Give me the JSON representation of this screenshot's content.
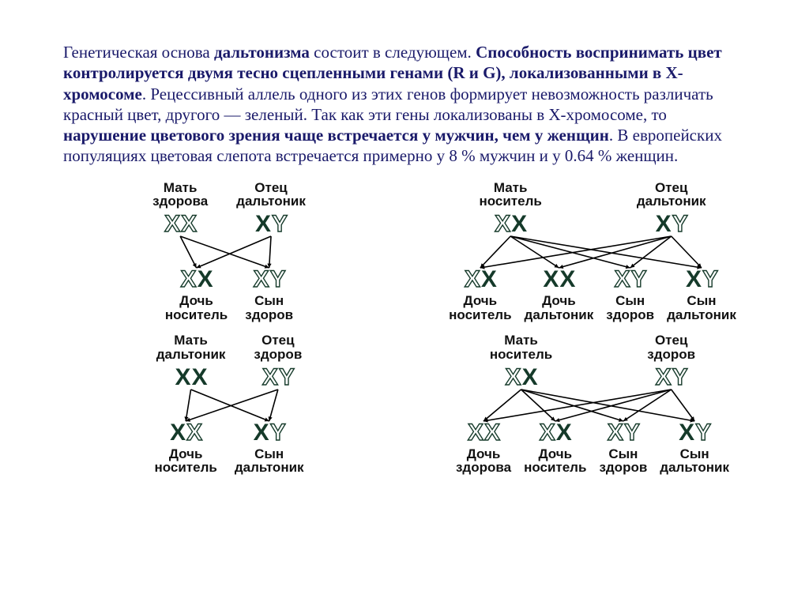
{
  "colors": {
    "text_body": "#1a1a6a",
    "text_label": "#111111",
    "chrom_filled": "#153a2a",
    "chrom_outline_stroke": "#153a2a",
    "arrow": "#000000",
    "background": "#ffffff"
  },
  "typography": {
    "body_font": "Times New Roman",
    "body_size_pt": 16,
    "label_font": "Arial",
    "label_size_pt": 13,
    "label_weight": "bold",
    "chrom_size_pt": 22,
    "chrom_weight": 900
  },
  "paragraph_segments": [
    {
      "t": "Генетическая основа ",
      "b": false
    },
    {
      "t": "дальтонизма",
      "b": true
    },
    {
      "t": " состоит в следующем. ",
      "b": false
    },
    {
      "t": "Способность воспринимать цвет контролируется двумя тесно сцепленными генами (R и G), локализованными в Х-хромосоме",
      "b": true
    },
    {
      "t": ". Рецессивный аллель одного из этих генов формирует невозможность различать красный цвет, другого — зеленый. Так как эти гены локализованы в Х-хромосоме, то ",
      "b": false
    },
    {
      "t": "нарушение цветового зрения чаще встречается у мужчин, чем у женщин",
      "b": true
    },
    {
      "t": ". В европейских популяциях цветовая слепота встречается примерно у 8 % мужчин и у 0.64 % женщин.",
      "b": false
    }
  ],
  "chrom_glyphs": {
    "X": "X",
    "Y": "Y"
  },
  "crosses": [
    {
      "id": "c1",
      "wide": false,
      "parents": [
        {
          "label": "Мать\nздорова",
          "chroms": [
            [
              "X",
              "outline"
            ],
            [
              "X",
              "outline"
            ]
          ]
        },
        {
          "label": "Отец\nдальтоник",
          "chroms": [
            [
              "X",
              "filled"
            ],
            [
              "Y",
              "outline"
            ]
          ]
        }
      ],
      "children": [
        {
          "label": "Дочь\nноситель",
          "chroms": [
            [
              "X",
              "outline"
            ],
            [
              "X",
              "filled"
            ]
          ]
        },
        {
          "label": "Сын\nздоров",
          "chroms": [
            [
              "X",
              "outline"
            ],
            [
              "Y",
              "outline"
            ]
          ]
        }
      ],
      "arrows": [
        [
          0,
          0
        ],
        [
          0,
          1
        ],
        [
          1,
          0
        ],
        [
          1,
          1
        ]
      ]
    },
    {
      "id": "c2",
      "wide": true,
      "parents": [
        {
          "label": "Мать\nноситель",
          "chroms": [
            [
              "X",
              "outline"
            ],
            [
              "X",
              "filled"
            ]
          ]
        },
        {
          "label": "Отец\nдальтоник",
          "chroms": [
            [
              "X",
              "filled"
            ],
            [
              "Y",
              "outline"
            ]
          ]
        }
      ],
      "children": [
        {
          "label": "Дочь\nноситель",
          "chroms": [
            [
              "X",
              "outline"
            ],
            [
              "X",
              "filled"
            ]
          ]
        },
        {
          "label": "Дочь\nдальтоник",
          "chroms": [
            [
              "X",
              "filled"
            ],
            [
              "X",
              "filled"
            ]
          ]
        },
        {
          "label": "Сын\nздоров",
          "chroms": [
            [
              "X",
              "outline"
            ],
            [
              "Y",
              "outline"
            ]
          ]
        },
        {
          "label": "Сын\nдальтоник",
          "chroms": [
            [
              "X",
              "filled"
            ],
            [
              "Y",
              "outline"
            ]
          ]
        }
      ],
      "arrows": [
        [
          0,
          0
        ],
        [
          0,
          1
        ],
        [
          0,
          2
        ],
        [
          0,
          3
        ],
        [
          1,
          0
        ],
        [
          1,
          1
        ],
        [
          1,
          2
        ],
        [
          1,
          3
        ]
      ]
    },
    {
      "id": "c3",
      "wide": false,
      "parents": [
        {
          "label": "Мать\nдальтоник",
          "chroms": [
            [
              "X",
              "filled"
            ],
            [
              "X",
              "filled"
            ]
          ]
        },
        {
          "label": "Отец\nздоров",
          "chroms": [
            [
              "X",
              "outline"
            ],
            [
              "Y",
              "outline"
            ]
          ]
        }
      ],
      "children": [
        {
          "label": "Дочь\nноситель",
          "chroms": [
            [
              "X",
              "filled"
            ],
            [
              "X",
              "outline"
            ]
          ]
        },
        {
          "label": "Сын\nдальтоник",
          "chroms": [
            [
              "X",
              "filled"
            ],
            [
              "Y",
              "outline"
            ]
          ]
        }
      ],
      "arrows": [
        [
          0,
          0
        ],
        [
          0,
          1
        ],
        [
          1,
          0
        ],
        [
          1,
          1
        ]
      ]
    },
    {
      "id": "c4",
      "wide": true,
      "parents": [
        {
          "label": "Мать\nноситель",
          "chroms": [
            [
              "X",
              "outline"
            ],
            [
              "X",
              "filled"
            ]
          ]
        },
        {
          "label": "Отец\nздоров",
          "chroms": [
            [
              "X",
              "outline"
            ],
            [
              "Y",
              "outline"
            ]
          ]
        }
      ],
      "children": [
        {
          "label": "Дочь\nздорова",
          "chroms": [
            [
              "X",
              "outline"
            ],
            [
              "X",
              "outline"
            ]
          ]
        },
        {
          "label": "Дочь\nноситель",
          "chroms": [
            [
              "X",
              "outline"
            ],
            [
              "X",
              "filled"
            ]
          ]
        },
        {
          "label": "Сын\nздоров",
          "chroms": [
            [
              "X",
              "outline"
            ],
            [
              "Y",
              "outline"
            ]
          ]
        },
        {
          "label": "Сын\nдальтоник",
          "chroms": [
            [
              "X",
              "filled"
            ],
            [
              "Y",
              "outline"
            ]
          ]
        }
      ],
      "arrows": [
        [
          0,
          0
        ],
        [
          0,
          1
        ],
        [
          0,
          2
        ],
        [
          0,
          3
        ],
        [
          1,
          0
        ],
        [
          1,
          1
        ],
        [
          1,
          2
        ],
        [
          1,
          3
        ]
      ]
    }
  ],
  "arrow_style": {
    "stroke": "#000000",
    "stroke_width": 1.6,
    "head": 6
  }
}
